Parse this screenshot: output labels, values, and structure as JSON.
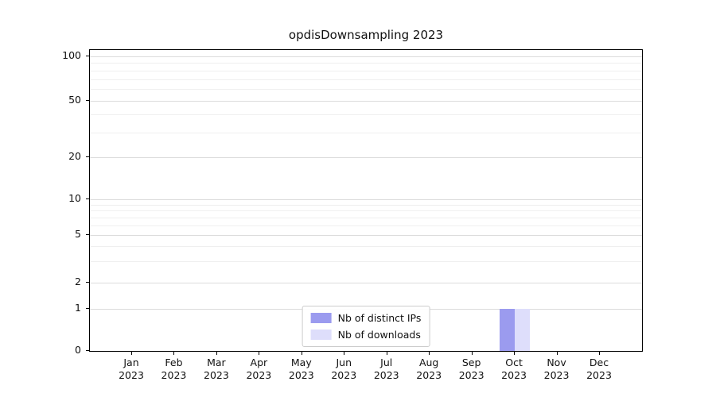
{
  "chart_data": {
    "type": "bar",
    "title": "opdisDownsampling 2023",
    "categories": [
      "Jan",
      "Feb",
      "Mar",
      "Apr",
      "May",
      "Jun",
      "Jul",
      "Aug",
      "Sep",
      "Oct",
      "Nov",
      "Dec"
    ],
    "category_year": "2023",
    "series": [
      {
        "name": "Nb of distinct IPs",
        "color": "#9b9bef",
        "values": [
          0,
          0,
          0,
          0,
          0,
          0,
          0,
          0,
          0,
          1,
          0,
          0
        ]
      },
      {
        "name": "Nb of downloads",
        "color": "#dedefb",
        "values": [
          0,
          0,
          0,
          0,
          0,
          0,
          0,
          0,
          0,
          1,
          0,
          0
        ]
      }
    ],
    "y_ticks": [
      0,
      1,
      2,
      5,
      10,
      20,
      50,
      100
    ],
    "y_minor_gridlines": [
      3,
      4,
      6,
      7,
      8,
      9,
      30,
      40,
      60,
      70,
      80,
      90
    ],
    "y_scale": "symlog",
    "ylim": [
      0,
      105
    ],
    "xlabel": "",
    "ylabel": "",
    "grid": "horizontal",
    "legend_position": "lower center"
  }
}
